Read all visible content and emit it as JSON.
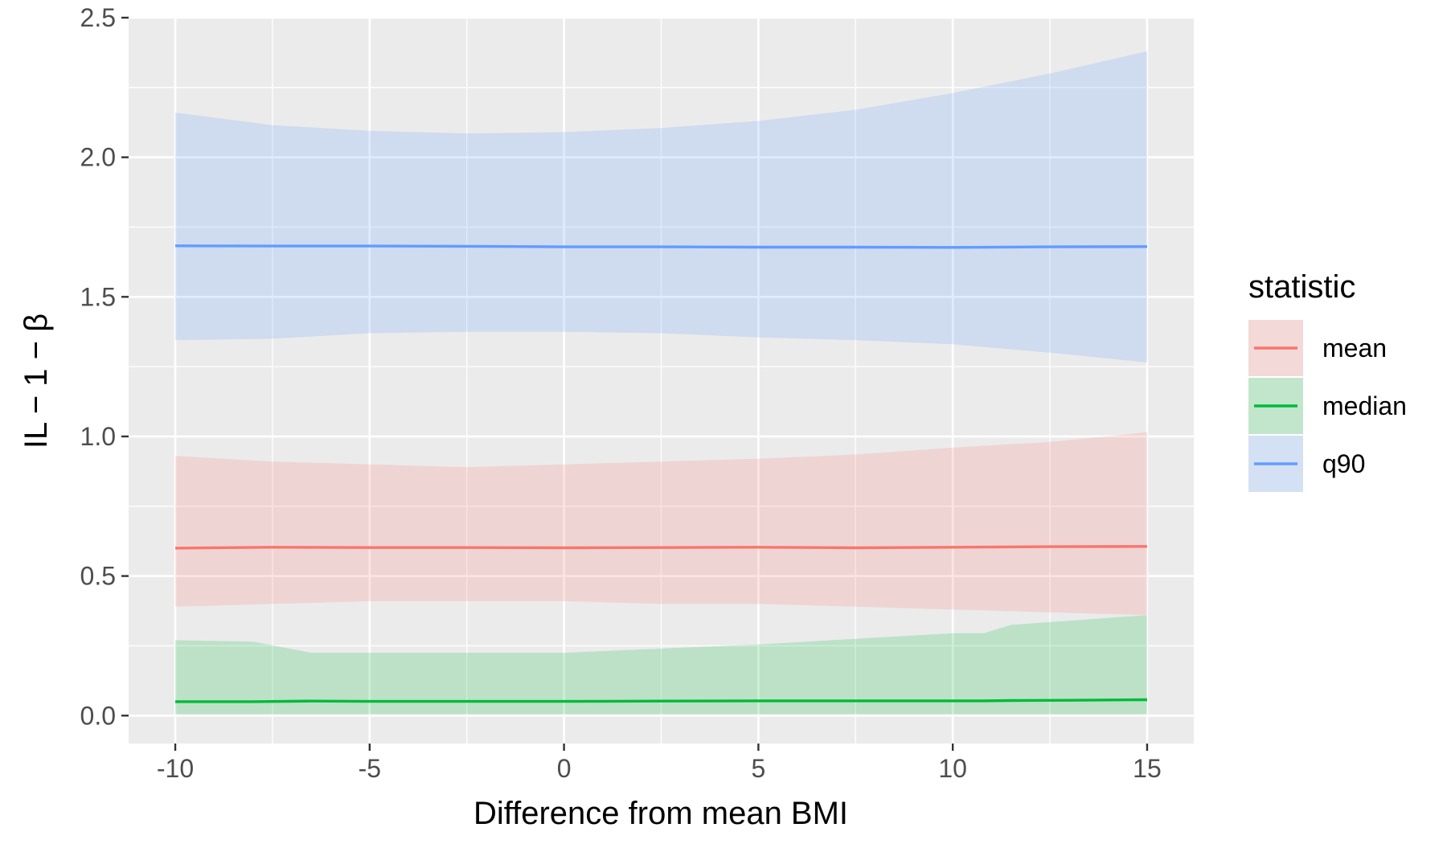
{
  "chart_data": {
    "type": "area",
    "xlabel": "Difference from mean BMI",
    "ylabel": "IL − 1 − β",
    "xlim": [
      -11.2,
      16.2
    ],
    "ylim": [
      -0.1,
      2.5
    ],
    "x_ticks": [
      -10,
      -5,
      0,
      5,
      10,
      15
    ],
    "x_tick_labels": [
      "-10",
      "-5",
      "0",
      "5",
      "10",
      "15"
    ],
    "y_ticks": [
      0,
      0.5,
      1,
      1.5,
      2,
      2.5
    ],
    "y_tick_labels": [
      "0.0",
      "0.5",
      "1.0",
      "1.5",
      "2.0",
      "2.5"
    ],
    "grid": true,
    "legend": {
      "title": "statistic",
      "position": "right"
    },
    "series": [
      {
        "name": "mean",
        "color": "#F8766D",
        "x": [
          -10,
          -7.5,
          -5,
          -2.5,
          0,
          2.5,
          5,
          7.5,
          10,
          12.5,
          15
        ],
        "values": [
          0.6,
          0.603,
          0.602,
          0.602,
          0.601,
          0.602,
          0.603,
          0.601,
          0.603,
          0.605,
          0.606
        ],
        "lower": [
          0.39,
          0.4,
          0.41,
          0.41,
          0.41,
          0.4,
          0.4,
          0.39,
          0.38,
          0.37,
          0.36
        ],
        "upper": [
          0.93,
          0.91,
          0.9,
          0.89,
          0.9,
          0.91,
          0.92,
          0.935,
          0.96,
          0.98,
          1.015
        ]
      },
      {
        "name": "median",
        "color": "#00BA38",
        "x": [
          -10,
          -8,
          -6.5,
          -5,
          -2.5,
          0,
          2.5,
          5,
          7.5,
          10,
          10.8,
          11.5,
          13,
          15
        ],
        "values": [
          0.05,
          0.05,
          0.052,
          0.051,
          0.051,
          0.051,
          0.052,
          0.053,
          0.053,
          0.053,
          0.053,
          0.054,
          0.055,
          0.057
        ],
        "lower": [
          0.005,
          0.005,
          0.005,
          0.005,
          0.005,
          0.005,
          0.005,
          0.005,
          0.005,
          0.005,
          0.005,
          0.005,
          0.005,
          0.005
        ],
        "upper": [
          0.27,
          0.265,
          0.225,
          0.225,
          0.225,
          0.225,
          0.24,
          0.255,
          0.275,
          0.295,
          0.295,
          0.325,
          0.34,
          0.36
        ]
      },
      {
        "name": "q90",
        "color": "#619CFF",
        "x": [
          -10,
          -7.5,
          -5,
          -2.5,
          0,
          2.5,
          5,
          7.5,
          10,
          12.5,
          15
        ],
        "values": [
          1.683,
          1.682,
          1.682,
          1.681,
          1.679,
          1.679,
          1.678,
          1.678,
          1.677,
          1.679,
          1.68
        ],
        "lower": [
          1.345,
          1.35,
          1.37,
          1.375,
          1.375,
          1.37,
          1.355,
          1.345,
          1.33,
          1.3,
          1.265
        ],
        "upper": [
          2.16,
          2.115,
          2.095,
          2.085,
          2.09,
          2.105,
          2.13,
          2.17,
          2.23,
          2.3,
          2.38
        ]
      }
    ]
  }
}
